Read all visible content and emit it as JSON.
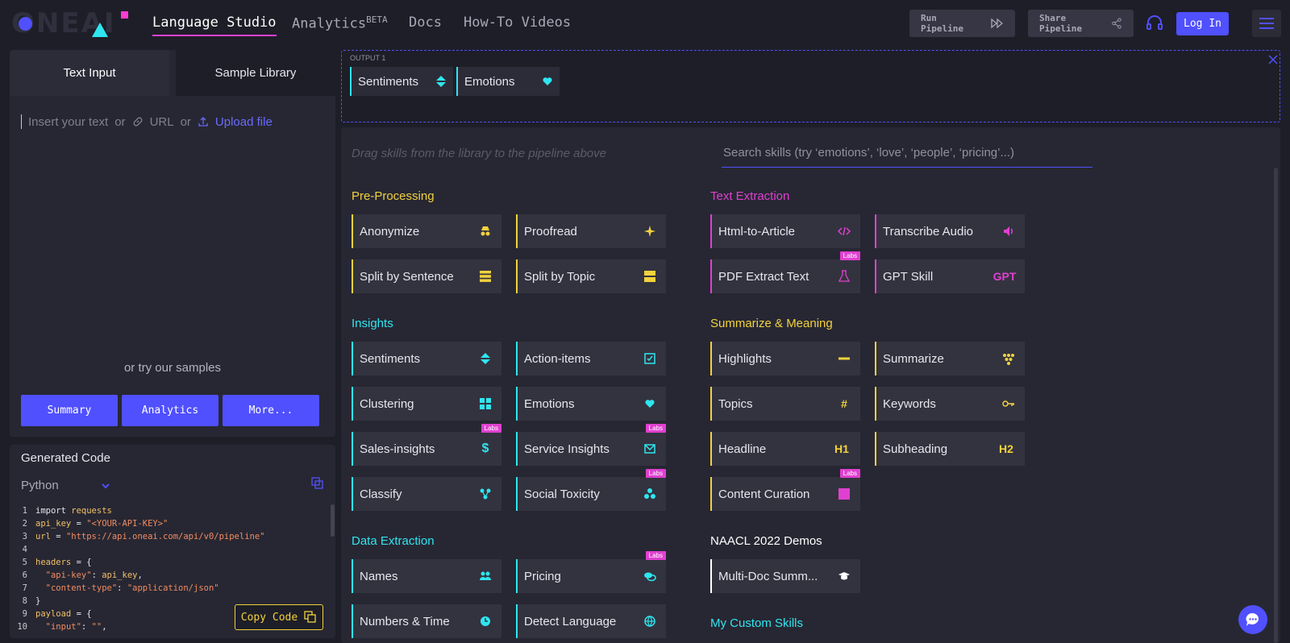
{
  "header": {
    "logo_text": "ONEAI",
    "nav": [
      {
        "label": "Language Studio"
      },
      {
        "label": "Analytics",
        "sup": "BETA"
      },
      {
        "label": "Docs"
      },
      {
        "label": "How-To Videos"
      }
    ],
    "run_pipeline": "Run Pipeline",
    "share_pipeline": "Share Pipeline",
    "login": "Log In"
  },
  "input_panel": {
    "tabs": [
      "Text Input",
      "Sample Library"
    ],
    "placeholder": "Insert your text",
    "or1": "or",
    "url": "URL",
    "or2": "or",
    "upload": "Upload file",
    "try_samples": "or try our samples",
    "sample_buttons": [
      "Summary",
      "Analytics",
      "More..."
    ]
  },
  "code_panel": {
    "title": "Generated Code",
    "language": "Python",
    "copy": "Copy Code"
  },
  "output": {
    "label": "OUTPUT 1",
    "chips": [
      "Sentiments",
      "Emotions"
    ]
  },
  "library": {
    "hint": "Drag skills from the library to the pipeline above",
    "search_placeholder": "Search skills (try ‘emotions’, ‘love’, ‘people’, ‘pricing’...)",
    "labs_label": "Labs",
    "sections": {
      "pre_processing": {
        "title": "Pre-Processing",
        "skills": [
          "Anonymize",
          "Proofread",
          "Split by Sentence",
          "Split by Topic"
        ]
      },
      "text_extraction": {
        "title": "Text Extraction",
        "skills": [
          "Html-to-Article",
          "Transcribe Audio",
          "PDF Extract Text",
          "GPT Skill"
        ],
        "gpt_icon": "GPT"
      },
      "insights": {
        "title": "Insights",
        "skills": [
          "Sentiments",
          "Action-items",
          "Clustering",
          "Emotions",
          "Sales-insights",
          "Service Insights",
          "Classify",
          "Social Toxicity"
        ]
      },
      "summarize": {
        "title": "Summarize & Meaning",
        "skills": [
          "Highlights",
          "Summarize",
          "Topics",
          "Keywords",
          "Headline",
          "Subheading",
          "Content Curation"
        ],
        "h1": "H1",
        "h2": "H2"
      },
      "data_extraction": {
        "title": "Data Extraction",
        "skills": [
          "Names",
          "Pricing",
          "Numbers & Time",
          "Detect Language"
        ]
      },
      "naacl": {
        "title": "NAACL 2022 Demos",
        "skills": [
          "Multi-Doc Summ..."
        ]
      },
      "custom": {
        "title": "My Custom Skills"
      }
    }
  },
  "colors": {
    "accent": "#5050ff",
    "yellow": "#f2d23c",
    "cyan": "#2ee6f0",
    "pink": "#e040d0"
  }
}
